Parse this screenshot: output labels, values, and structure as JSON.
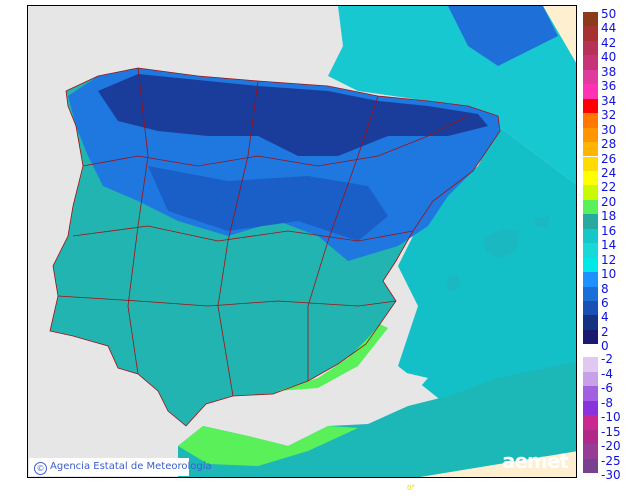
{
  "credit": {
    "symbol": "©",
    "text": "Agencia Estatal de Meteorología"
  },
  "logo": "aemet",
  "longitude_label": "0°",
  "legend": {
    "upper": [
      {
        "label": "50",
        "color": "#8b3a1a"
      },
      {
        "label": "44",
        "color": "#a63232"
      },
      {
        "label": "42",
        "color": "#b83258"
      },
      {
        "label": "40",
        "color": "#c83278"
      },
      {
        "label": "38",
        "color": "#de3c9c"
      },
      {
        "label": "36",
        "color": "#ff32b4"
      },
      {
        "label": "34",
        "color": "#ff0000"
      },
      {
        "label": "32",
        "color": "#ff7800"
      },
      {
        "label": "30",
        "color": "#ff9600"
      },
      {
        "label": "28",
        "color": "#ffb400"
      },
      {
        "label": "26",
        "color": "#ffdc00"
      },
      {
        "label": "24",
        "color": "#ffff00"
      },
      {
        "label": "22",
        "color": "#c8fa00"
      },
      {
        "label": "20",
        "color": "#5af05a"
      },
      {
        "label": "18",
        "color": "#28aaa0"
      },
      {
        "label": "16",
        "color": "#14c8c8"
      },
      {
        "label": "14",
        "color": "#18d8d8"
      },
      {
        "label": "12",
        "color": "#00e8e8"
      },
      {
        "label": "10",
        "color": "#1e90ff"
      },
      {
        "label": "8",
        "color": "#1a6ed8"
      },
      {
        "label": "6",
        "color": "#1a50b4"
      },
      {
        "label": "4",
        "color": "#143282"
      },
      {
        "label": "2",
        "color": "#1a1a6e"
      },
      {
        "label": "0",
        "color": null
      }
    ],
    "lower": [
      {
        "label": "-2",
        "color": "#e0c8f0"
      },
      {
        "label": "-4",
        "color": "#c8a0e8"
      },
      {
        "label": "-6",
        "color": "#a060e0"
      },
      {
        "label": "-8",
        "color": "#8a32dc"
      },
      {
        "label": "-10",
        "color": "#c82890"
      },
      {
        "label": "-15",
        "color": "#b02888"
      },
      {
        "label": "-20",
        "color": "#963c96"
      },
      {
        "label": "-25",
        "color": "#7a4090"
      },
      {
        "label": "-30",
        "color": null
      }
    ]
  }
}
